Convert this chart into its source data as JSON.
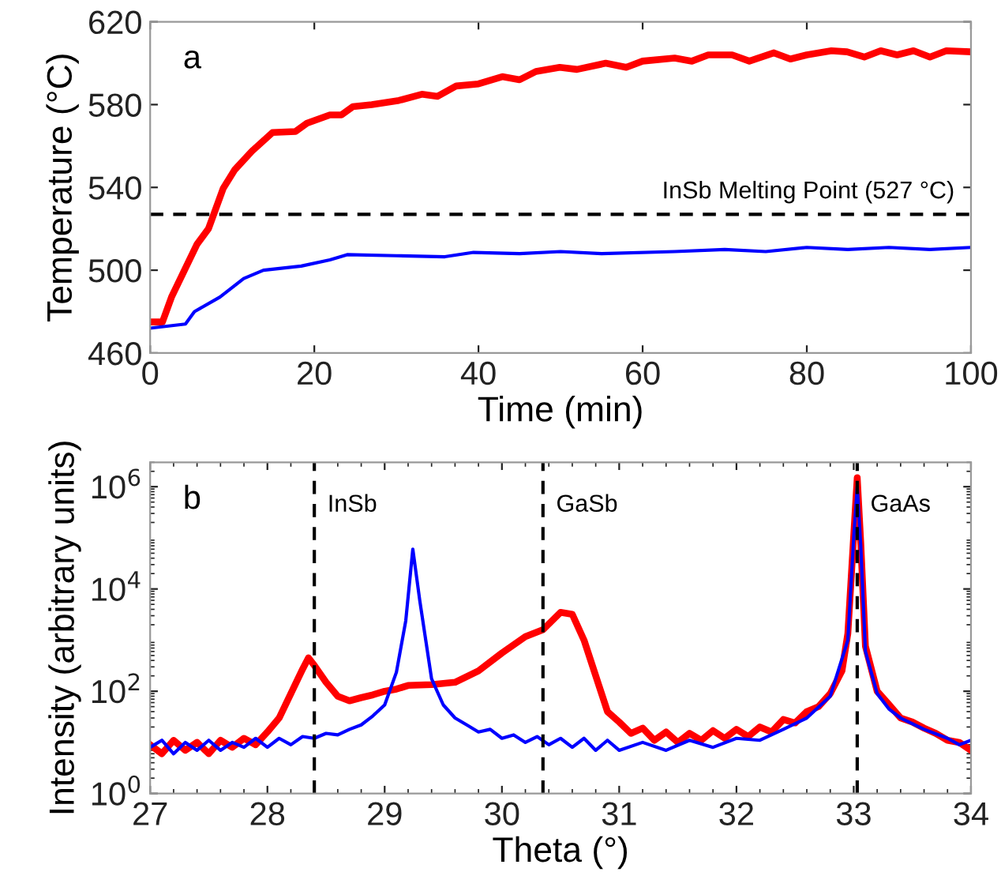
{
  "chart_data": [
    {
      "type": "line",
      "xlabel": "Time (min)",
      "ylabel": "Temperature (°C)",
      "annotations": [
        "a"
      ],
      "xlim": [
        0,
        100
      ],
      "xticks": [
        0,
        20,
        40,
        60,
        80,
        100
      ],
      "ylim": [
        460,
        620
      ],
      "yticks": [
        460,
        500,
        540,
        580,
        620
      ],
      "grid": false,
      "legend": false,
      "ref_lines": [
        {
          "axis": "y",
          "value": 527,
          "label": "InSb Melting Point (527 °C)",
          "color": "#000000",
          "line_style": "dashed"
        }
      ],
      "series": [
        {
          "color": "#ff0000",
          "x": [
            0,
            1.5,
            2.6,
            5.7,
            7.1,
            8.9,
            10.3,
            12.4,
            14.9,
            17.7,
            19.1,
            21.9,
            23.3,
            24.7,
            27,
            30.3,
            33.1,
            35,
            37.3,
            40,
            42.9,
            45,
            47,
            49.9,
            52,
            55.5,
            58,
            60,
            63.9,
            66,
            68,
            70.9,
            73,
            76,
            78,
            80,
            83,
            84.9,
            87,
            89,
            91,
            93,
            95,
            97,
            100
          ],
          "values": [
            475,
            475,
            487,
            512.5,
            520,
            539.5,
            548.5,
            557.5,
            566.5,
            567,
            571,
            575,
            575,
            579,
            580,
            582,
            585,
            584,
            589,
            590,
            593.5,
            592,
            596,
            598,
            597,
            600,
            598,
            601,
            602.5,
            601,
            604,
            604,
            601,
            605,
            602,
            604,
            606,
            605.5,
            603,
            606,
            604,
            606,
            603,
            606,
            605.5
          ]
        },
        {
          "color": "#0000ff",
          "x": [
            0,
            4.3,
            5.4,
            8.5,
            11.4,
            13.8,
            18.4,
            21.9,
            24,
            30,
            35.9,
            39.4,
            45,
            50,
            55,
            63.9,
            70,
            75,
            80,
            85,
            90,
            95,
            100
          ],
          "values": [
            472,
            474,
            480,
            487,
            496,
            500,
            502,
            505,
            507.5,
            507,
            506.5,
            508.6,
            508,
            509,
            508,
            509,
            510,
            509,
            511,
            510,
            511,
            510,
            511
          ]
        }
      ]
    },
    {
      "type": "line",
      "xlabel": "Theta (°)",
      "ylabel": "Intensity (arbitrary units)",
      "annotations": [
        "b"
      ],
      "log": "y",
      "xlim": [
        27,
        34
      ],
      "xticks": [
        27,
        28,
        29,
        30,
        31,
        32,
        33,
        34
      ],
      "ylim": [
        1,
        3000000
      ],
      "yticks": [
        {
          "value": 1,
          "label": "10$^{0}$"
        },
        {
          "value": 100,
          "label": "10$^{2}$"
        },
        {
          "value": 10000,
          "label": "10$^{4}$"
        },
        {
          "value": 1000000,
          "label": "10$^{6}$"
        }
      ],
      "grid": false,
      "legend": false,
      "ref_lines": [
        {
          "axis": "x",
          "value": 28.4,
          "label": "InSb",
          "color": "#000000",
          "line_style": "dashed"
        },
        {
          "axis": "x",
          "value": 30.35,
          "label": "GaSb",
          "color": "#000000",
          "line_style": "dashed"
        },
        {
          "axis": "x",
          "value": 33.03,
          "label": "GaAs",
          "color": "#000000",
          "line_style": "dashed"
        }
      ],
      "series": [
        {
          "color": "#ff0000",
          "x": [
            27.0,
            27.1,
            27.2,
            27.3,
            27.4,
            27.5,
            27.6,
            27.7,
            27.8,
            27.9,
            28.0,
            28.1,
            28.2,
            28.3,
            28.35,
            28.4,
            28.5,
            28.6,
            28.7,
            28.8,
            28.9,
            29.0,
            29.1,
            29.2,
            29.4,
            29.6,
            29.8,
            30.0,
            30.2,
            30.35,
            30.5,
            30.6,
            30.7,
            30.8,
            30.9,
            31.0,
            31.1,
            31.2,
            31.3,
            31.4,
            31.5,
            31.6,
            31.7,
            31.8,
            31.9,
            32.0,
            32.1,
            32.2,
            32.3,
            32.4,
            32.5,
            32.6,
            32.7,
            32.8,
            32.9,
            32.95,
            33.0,
            33.03,
            33.06,
            33.1,
            33.2,
            33.3,
            33.4,
            33.5,
            33.6,
            33.7,
            33.8,
            33.9,
            34.0
          ],
          "values": [
            9,
            6,
            11,
            7,
            10,
            6,
            11,
            8,
            12,
            9,
            16,
            30,
            90,
            270,
            450,
            320,
            150,
            80,
            65,
            75,
            85,
            100,
            110,
            130,
            135,
            150,
            250,
            560,
            1170,
            1600,
            3500,
            3200,
            1000,
            200,
            40,
            25,
            15,
            19,
            11,
            16,
            10,
            15,
            11,
            17,
            12,
            18,
            13,
            20,
            16,
            28,
            24,
            40,
            50,
            90,
            250,
            1350,
            110000,
            1500000,
            80000,
            760,
            100,
            55,
            30,
            25,
            19,
            15,
            11,
            10,
            7
          ]
        },
        {
          "color": "#0000ff",
          "x": [
            27.0,
            27.1,
            27.2,
            27.3,
            27.4,
            27.5,
            27.6,
            27.7,
            27.8,
            27.9,
            28.0,
            28.1,
            28.2,
            28.3,
            28.4,
            28.5,
            28.6,
            28.7,
            28.8,
            28.9,
            29.0,
            29.1,
            29.18,
            29.24,
            29.3,
            29.4,
            29.5,
            29.6,
            29.7,
            29.8,
            29.9,
            30.0,
            30.1,
            30.2,
            30.3,
            30.4,
            30.5,
            30.6,
            30.7,
            30.8,
            30.9,
            31.0,
            31.2,
            31.4,
            31.6,
            31.8,
            32.0,
            32.2,
            32.4,
            32.6,
            32.8,
            32.95,
            33.0,
            33.03,
            33.06,
            33.1,
            33.2,
            33.3,
            33.4,
            33.6,
            33.8,
            33.9,
            34.0
          ],
          "values": [
            8,
            11,
            6,
            10,
            7,
            11,
            7,
            10,
            8,
            12,
            8,
            12,
            9,
            13,
            12,
            15,
            14,
            18,
            22,
            33,
            54,
            235,
            2400,
            60000,
            5800,
            175,
            54,
            30,
            22,
            16,
            18,
            12,
            14,
            10,
            13,
            9,
            12,
            8,
            12,
            7,
            11,
            7,
            10,
            7,
            11,
            8,
            12,
            11,
            18,
            30,
            80,
            1000,
            100000,
            1000000,
            70000,
            600,
            90,
            45,
            30,
            18,
            12,
            9,
            11
          ]
        }
      ]
    }
  ]
}
